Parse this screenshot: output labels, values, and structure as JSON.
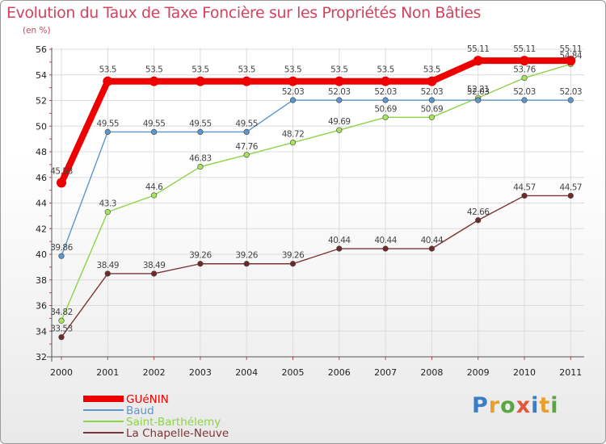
{
  "title": "Evolution du Taux de Taxe Foncière sur les Propriétés Non Bâties",
  "unit": "(en %)",
  "logo": {
    "text": "Proxiti",
    "colors": [
      "#3a7fc6",
      "#e8a02a",
      "#5aa642",
      "#e2563c",
      "#3a7fc6",
      "#e8a02a",
      "#5aa642"
    ]
  },
  "chart_data": {
    "type": "line",
    "title": "Evolution du Taux de Taxe Foncière sur les Propriétés Non Bâties",
    "ylabel": "(en %)",
    "xlabel": "",
    "ylim": [
      32,
      56
    ],
    "yticks": [
      32,
      34,
      36,
      38,
      40,
      42,
      44,
      46,
      48,
      50,
      52,
      54,
      56
    ],
    "categories": [
      "2000",
      "2001",
      "2002",
      "2003",
      "2004",
      "2005",
      "2006",
      "2007",
      "2008",
      "2009",
      "2010",
      "2011"
    ],
    "legend_position": "bottom-left",
    "series": [
      {
        "name": "Saint-Barthélemy",
        "color": "#8cd448",
        "marker": "#a5e45e",
        "width": 1.4,
        "r": 3.3,
        "labels": [
          "34.82",
          "43.3",
          "44.6",
          "46.83",
          "47.76",
          "48.72",
          "49.69",
          "50.69",
          "50.69",
          "52.21",
          "53.76",
          "54.84"
        ],
        "values": [
          34.82,
          43.3,
          44.6,
          46.83,
          47.76,
          48.72,
          49.69,
          50.69,
          50.69,
          52.21,
          53.76,
          54.84
        ]
      },
      {
        "name": "Baud",
        "color": "#5c96cc",
        "marker": "#5c96cc",
        "width": 1.4,
        "r": 3.3,
        "labels": [
          "39.86",
          "49.55",
          "49.55",
          "49.55",
          "49.55",
          "52.03",
          "52.03",
          "52.03",
          "52.03",
          "52.03",
          "52.03",
          "52.03"
        ],
        "values": [
          39.86,
          49.55,
          49.55,
          49.55,
          49.55,
          52.03,
          52.03,
          52.03,
          52.03,
          52.03,
          52.03,
          52.03
        ]
      },
      {
        "name": "La Chapelle-Neuve",
        "color": "#7d3434",
        "marker": "#6e2a2a",
        "width": 1.4,
        "r": 3.3,
        "labels": [
          "33.53",
          "38.49",
          "38.49",
          "39.26",
          "39.26",
          "39.26",
          "40.44",
          "40.44",
          "40.44",
          "42.66",
          "44.57",
          "44.57"
        ],
        "values": [
          33.53,
          38.49,
          38.49,
          39.26,
          39.26,
          39.26,
          40.44,
          40.44,
          40.44,
          42.66,
          44.57,
          44.57
        ]
      },
      {
        "name": "GUéNIN",
        "color": "#ef0000",
        "marker": "#ee0000",
        "width": 8,
        "r": 6,
        "labels": [
          "45.58",
          "53.5",
          "53.5",
          "53.5",
          "53.5",
          "53.5",
          "53.5",
          "53.5",
          "53.5",
          "55.11",
          "55.11",
          "55.11"
        ],
        "values": [
          45.58,
          53.5,
          53.5,
          53.5,
          53.5,
          53.5,
          53.5,
          53.5,
          53.5,
          55.11,
          55.11,
          55.11
        ]
      }
    ],
    "legend_order": [
      "GUéNIN",
      "Baud",
      "Saint-Barthélemy",
      "La Chapelle-Neuve"
    ]
  }
}
